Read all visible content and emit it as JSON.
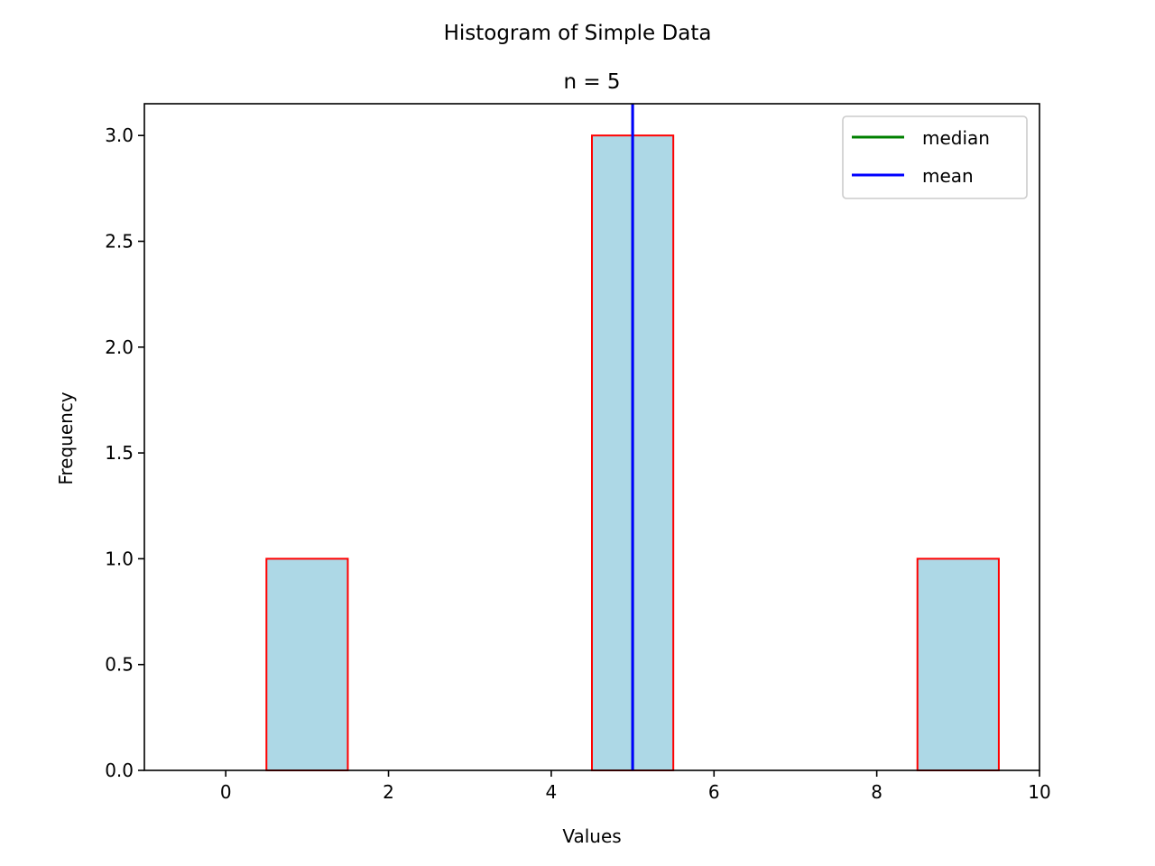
{
  "chart_data": {
    "type": "bar",
    "title": "Histogram of Simple Data",
    "subtitle": "n = 5",
    "xlabel": "Values",
    "ylabel": "Frequency",
    "xlim": [
      -1,
      10
    ],
    "ylim": [
      0,
      3.15
    ],
    "xticks": [
      0,
      2,
      4,
      6,
      8,
      10
    ],
    "xtick_labels": [
      "0",
      "2",
      "4",
      "6",
      "8",
      "10"
    ],
    "yticks": [
      0,
      0.5,
      1,
      1.5,
      2,
      2.5,
      3
    ],
    "ytick_labels": [
      "0.0",
      "0.5",
      "1.0",
      "1.5",
      "2.0",
      "2.5",
      "3.0"
    ],
    "grid": false,
    "bins": [
      {
        "start": 0.5,
        "end": 1.5,
        "value": 1
      },
      {
        "start": 4.5,
        "end": 5.5,
        "value": 3
      },
      {
        "start": 8.5,
        "end": 9.5,
        "value": 1
      }
    ],
    "bar_fill": "#add8e6",
    "bar_edge": "#ff0000",
    "vlines": [
      {
        "name": "median",
        "x": 5,
        "color": "#008000"
      },
      {
        "name": "mean",
        "x": 5,
        "color": "#0000ff"
      }
    ],
    "legend": {
      "placement": "top-right",
      "entries": [
        {
          "label": "median",
          "color": "#008000"
        },
        {
          "label": "mean",
          "color": "#0000ff"
        }
      ]
    }
  }
}
